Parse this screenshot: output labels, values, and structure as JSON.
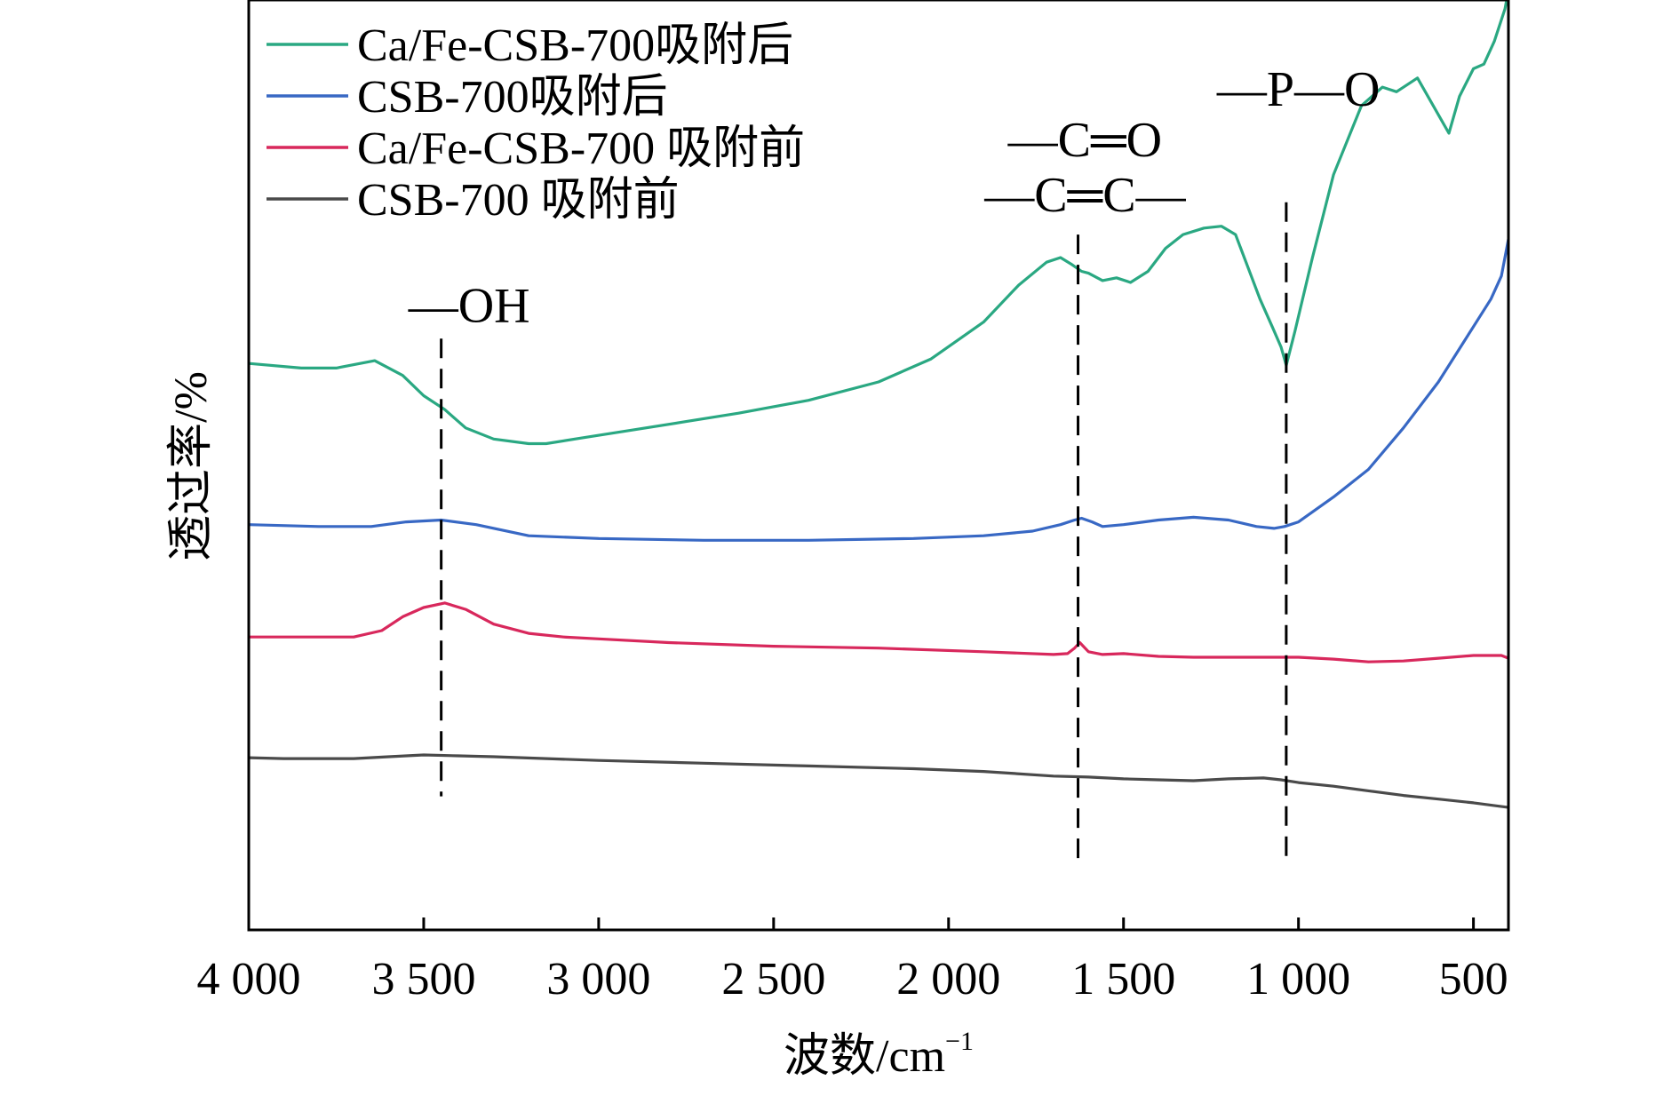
{
  "chart_data": {
    "type": "line",
    "title": "",
    "xlabel": "波数/cm",
    "xlabel_superscript": "−1",
    "ylabel": "透过率/%",
    "xlim": [
      4000,
      400
    ],
    "x_ticks": [
      4000,
      3500,
      3000,
      2500,
      2000,
      1500,
      1000,
      500
    ],
    "x_tick_labels": [
      "4 000",
      "3 500",
      "3 000",
      "2 500",
      "2 000",
      "1 500",
      "1 000",
      "500"
    ],
    "ylim": [
      0,
      100
    ],
    "y_ticks_shown": false,
    "grid": false,
    "legend_position": "top-left",
    "legend_order": [
      "ca_fe_after",
      "csb_after",
      "ca_fe_before",
      "csb_before"
    ],
    "series": [
      {
        "id": "ca_fe_after",
        "name": "Ca/Fe-CSB-700吸附后",
        "color": "#2aa882",
        "x": [
          4000,
          3850,
          3750,
          3640,
          3560,
          3500,
          3440,
          3380,
          3300,
          3200,
          3150,
          3050,
          2900,
          2750,
          2600,
          2400,
          2200,
          2050,
          1900,
          1800,
          1720,
          1680,
          1650,
          1620,
          1600,
          1560,
          1520,
          1480,
          1430,
          1380,
          1330,
          1270,
          1220,
          1180,
          1150,
          1110,
          1075,
          1050,
          1035,
          1010,
          960,
          900,
          820,
          760,
          720,
          660,
          600,
          570,
          540,
          500,
          470,
          440,
          410,
          400
        ],
        "y": [
          61.5,
          61.0,
          61.0,
          61.8,
          60.2,
          58.0,
          56.5,
          54.5,
          53.3,
          52.8,
          52.8,
          53.4,
          54.3,
          55.2,
          56.1,
          57.5,
          59.5,
          62.0,
          66.0,
          70.0,
          72.5,
          73.0,
          72.3,
          71.5,
          71.3,
          70.5,
          70.8,
          70.3,
          71.5,
          74.0,
          75.5,
          76.2,
          76.4,
          75.5,
          72.5,
          68.5,
          65.5,
          63.3,
          61.3,
          65.0,
          73.0,
          82.0,
          89.5,
          91.5,
          91.0,
          92.5,
          88.5,
          86.5,
          90.5,
          93.5,
          94.0,
          96.5,
          100.0,
          102.0
        ]
      },
      {
        "id": "csb_after",
        "name": "CSB-700吸附后",
        "color": "#3868c4",
        "x": [
          4000,
          3800,
          3650,
          3550,
          3450,
          3350,
          3200,
          3000,
          2700,
          2400,
          2100,
          1900,
          1760,
          1680,
          1640,
          1620,
          1590,
          1560,
          1500,
          1400,
          1300,
          1200,
          1120,
          1070,
          1040,
          1000,
          900,
          800,
          700,
          600,
          500,
          450,
          420,
          400
        ],
        "y": [
          44.0,
          43.8,
          43.8,
          44.3,
          44.5,
          44.0,
          42.8,
          42.5,
          42.3,
          42.3,
          42.5,
          42.8,
          43.3,
          44.0,
          44.5,
          44.7,
          44.3,
          43.8,
          44.0,
          44.5,
          44.8,
          44.5,
          43.8,
          43.6,
          43.8,
          44.3,
          47.0,
          50.0,
          54.5,
          59.5,
          65.5,
          68.5,
          71.0,
          75.0
        ]
      },
      {
        "id": "ca_fe_before",
        "name": "Ca/Fe-CSB-700 吸附前",
        "color": "#d8285c",
        "x": [
          4000,
          3800,
          3700,
          3620,
          3560,
          3500,
          3440,
          3380,
          3300,
          3200,
          3100,
          3000,
          2800,
          2500,
          2200,
          1900,
          1700,
          1660,
          1640,
          1625,
          1600,
          1560,
          1500,
          1400,
          1300,
          1100,
          1000,
          900,
          800,
          700,
          600,
          500,
          420,
          400
        ],
        "y": [
          31.8,
          31.8,
          31.8,
          32.5,
          34.0,
          35.0,
          35.5,
          34.8,
          33.2,
          32.2,
          31.8,
          31.6,
          31.2,
          30.8,
          30.6,
          30.2,
          29.9,
          30.0,
          30.6,
          31.2,
          30.2,
          29.9,
          30.0,
          29.7,
          29.6,
          29.6,
          29.6,
          29.4,
          29.1,
          29.2,
          29.5,
          29.8,
          29.8,
          29.5
        ]
      },
      {
        "id": "csb_before",
        "name": "CSB-700 吸附前",
        "color": "#4a4a4a",
        "x": [
          4000,
          3900,
          3800,
          3700,
          3600,
          3500,
          3400,
          3300,
          3000,
          2700,
          2400,
          2100,
          1900,
          1700,
          1600,
          1500,
          1400,
          1300,
          1200,
          1100,
          1050,
          1000,
          900,
          800,
          700,
          600,
          500,
          400
        ],
        "y": [
          18.7,
          18.6,
          18.6,
          18.6,
          18.8,
          19.0,
          18.9,
          18.8,
          18.4,
          18.1,
          17.8,
          17.5,
          17.2,
          16.7,
          16.6,
          16.4,
          16.3,
          16.2,
          16.4,
          16.5,
          16.3,
          16.0,
          15.6,
          15.1,
          14.6,
          14.2,
          13.8,
          13.3
        ]
      }
    ],
    "annotations": [
      {
        "id": "oh",
        "label": "—OH",
        "x": 3450,
        "line_top": 64.2,
        "line_bottom": 14.5,
        "label_x": 3370,
        "label_y": 66.0
      },
      {
        "id": "cc",
        "label": "—C═C—",
        "x": 1630,
        "line_top": 75.5,
        "line_bottom": 7.0,
        "label_x": 1610,
        "label_y": 78.0
      },
      {
        "id": "co",
        "label": "—C═O",
        "x": 1630,
        "label_x": 1610,
        "label_y": 84.0
      },
      {
        "id": "po",
        "label": "—P—O",
        "x": 1035,
        "line_top": 79.0,
        "line_bottom": 7.0,
        "label_x": 1000,
        "label_y": 89.5
      }
    ]
  }
}
